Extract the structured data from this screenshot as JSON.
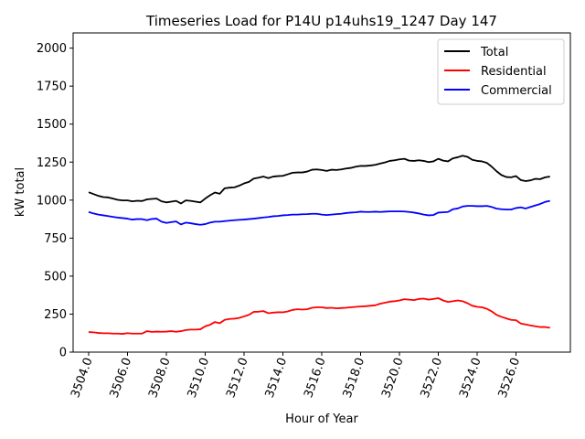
{
  "chart_data": {
    "type": "line",
    "title": "Timeseries Load for P14U p14uhs19_1247  Day 147",
    "xlabel": "Hour of Year",
    "ylabel": "kW total",
    "xlim": [
      3503.2,
      3528.8
    ],
    "ylim": [
      0,
      2100
    ],
    "x_ticks": [
      3504,
      3506,
      3508,
      3510,
      3512,
      3514,
      3516,
      3518,
      3520,
      3522,
      3524,
      3526
    ],
    "x_tick_labels": [
      "3504.0",
      "3506.0",
      "3508.0",
      "3510.0",
      "3512.0",
      "3514.0",
      "3516.0",
      "3518.0",
      "3520.0",
      "3522.0",
      "3524.0",
      "3526.0"
    ],
    "y_ticks": [
      0,
      250,
      500,
      750,
      1000,
      1250,
      1500,
      1750,
      2000
    ],
    "y_tick_labels": [
      "0",
      "250",
      "500",
      "750",
      "1000",
      "1250",
      "1500",
      "1750",
      "2000"
    ],
    "legend_position": "top-right",
    "x": [
      3504.0,
      3504.25,
      3504.5,
      3504.75,
      3505.0,
      3505.25,
      3505.5,
      3505.75,
      3506.0,
      3506.25,
      3506.5,
      3506.75,
      3507.0,
      3507.25,
      3507.5,
      3507.75,
      3508.0,
      3508.25,
      3508.5,
      3508.75,
      3509.0,
      3509.25,
      3509.5,
      3509.75,
      3510.0,
      3510.25,
      3510.5,
      3510.75,
      3511.0,
      3511.25,
      3511.5,
      3511.75,
      3512.0,
      3512.25,
      3512.5,
      3512.75,
      3513.0,
      3513.25,
      3513.5,
      3513.75,
      3514.0,
      3514.25,
      3514.5,
      3514.75,
      3515.0,
      3515.25,
      3515.5,
      3515.75,
      3516.0,
      3516.25,
      3516.5,
      3516.75,
      3517.0,
      3517.25,
      3517.5,
      3517.75,
      3518.0,
      3518.25,
      3518.5,
      3518.75,
      3519.0,
      3519.25,
      3519.5,
      3519.75,
      3520.0,
      3520.25,
      3520.5,
      3520.75,
      3521.0,
      3521.25,
      3521.5,
      3521.75,
      3522.0,
      3522.25,
      3522.5,
      3522.75,
      3523.0,
      3523.25,
      3523.5,
      3523.75,
      3524.0,
      3524.25,
      3524.5,
      3524.75,
      3525.0,
      3525.25,
      3525.5,
      3525.75,
      3526.0,
      3526.25,
      3526.5,
      3526.75,
      3527.0,
      3527.25,
      3527.5,
      3527.75
    ],
    "series": [
      {
        "name": "Total",
        "color": "#000000",
        "values": [
          1052,
          1040,
          1028,
          1020,
          1018,
          1010,
          1002,
          998,
          998,
          992,
          996,
          994,
          1005,
          1008,
          1010,
          992,
          985,
          990,
          995,
          978,
          998,
          995,
          990,
          985,
          1010,
          1032,
          1050,
          1042,
          1078,
          1082,
          1084,
          1095,
          1110,
          1120,
          1142,
          1148,
          1155,
          1145,
          1155,
          1158,
          1160,
          1170,
          1180,
          1182,
          1182,
          1188,
          1200,
          1202,
          1198,
          1192,
          1200,
          1198,
          1202,
          1208,
          1212,
          1220,
          1225,
          1225,
          1228,
          1232,
          1240,
          1248,
          1258,
          1262,
          1268,
          1272,
          1260,
          1258,
          1262,
          1258,
          1250,
          1255,
          1272,
          1260,
          1255,
          1275,
          1282,
          1292,
          1285,
          1265,
          1258,
          1255,
          1245,
          1220,
          1190,
          1165,
          1152,
          1150,
          1158,
          1132,
          1125,
          1130,
          1140,
          1138,
          1150,
          1155
        ]
      },
      {
        "name": "Residential",
        "color": "#ff0000",
        "values": [
          132,
          130,
          126,
          124,
          124,
          122,
          122,
          120,
          125,
          122,
          122,
          122,
          138,
          133,
          135,
          134,
          135,
          138,
          134,
          138,
          145,
          148,
          148,
          150,
          170,
          180,
          198,
          190,
          212,
          218,
          220,
          225,
          235,
          245,
          265,
          266,
          270,
          256,
          260,
          262,
          262,
          268,
          278,
          282,
          280,
          282,
          292,
          295,
          295,
          290,
          292,
          288,
          290,
          292,
          295,
          298,
          300,
          302,
          305,
          308,
          318,
          325,
          332,
          335,
          340,
          348,
          345,
          342,
          350,
          352,
          345,
          350,
          355,
          340,
          330,
          335,
          340,
          335,
          322,
          305,
          298,
          295,
          285,
          268,
          245,
          232,
          222,
          212,
          210,
          188,
          182,
          175,
          170,
          165,
          165,
          160
        ]
      },
      {
        "name": "Commercial",
        "color": "#0000ff",
        "values": [
          922,
          912,
          905,
          900,
          895,
          890,
          885,
          882,
          878,
          872,
          875,
          875,
          868,
          876,
          878,
          858,
          850,
          855,
          860,
          840,
          852,
          848,
          842,
          838,
          842,
          852,
          858,
          858,
          862,
          865,
          868,
          870,
          872,
          875,
          878,
          882,
          886,
          889,
          894,
          896,
          900,
          902,
          905,
          905,
          907,
          908,
          910,
          910,
          905,
          902,
          905,
          908,
          910,
          915,
          918,
          920,
          924,
          922,
          922,
          924,
          922,
          924,
          926,
          926,
          926,
          925,
          922,
          918,
          912,
          905,
          900,
          902,
          918,
          920,
          922,
          940,
          945,
          958,
          962,
          962,
          960,
          960,
          962,
          955,
          944,
          940,
          938,
          938,
          948,
          952,
          945,
          955,
          965,
          975,
          988,
          995
        ]
      }
    ]
  }
}
